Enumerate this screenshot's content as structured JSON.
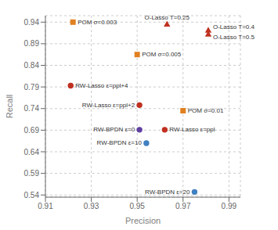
{
  "chart_data": {
    "type": "scatter",
    "xlabel": "Precision",
    "ylabel": "Recall",
    "xlim": [
      0.91,
      0.995
    ],
    "ylim": [
      0.535,
      0.955
    ],
    "xticks": [
      0.91,
      0.93,
      0.95,
      0.97,
      0.99
    ],
    "yticks": [
      0.54,
      0.59,
      0.64,
      0.69,
      0.74,
      0.79,
      0.84,
      0.89,
      0.94
    ],
    "grid": true,
    "series": [
      {
        "color": "#E08020",
        "marker": "square",
        "x": [
          0.922,
          0.95,
          0.97
        ],
        "values": [
          0.94,
          0.865,
          0.735
        ],
        "annotations": [
          "POM σ=0.003",
          "POM σ=0.005",
          "POM σ=0.01"
        ]
      },
      {
        "color": "#C03020",
        "marker": "triangle",
        "x": [
          0.963,
          0.981,
          0.981
        ],
        "values": [
          0.935,
          0.921,
          0.912
        ],
        "annotations": [
          "O-Lasso T=0.25",
          "O-Lasso T=0.4",
          "O-Lasso T=0.5"
        ]
      },
      {
        "color": "#C03020",
        "marker": "circle",
        "x": [
          0.921,
          0.951,
          0.962
        ],
        "values": [
          0.793,
          0.748,
          0.691
        ],
        "annotations": [
          "RW-Lasso ε=ppl+4",
          "RW-Lasso ε=ppl+2",
          "RW-Lasso ε=ppl"
        ]
      },
      {
        "color": "#6040A0",
        "marker": "circle",
        "x": [
          0.951
        ],
        "values": [
          0.691
        ],
        "annotations": [
          "RW-BPDN ε=0"
        ]
      },
      {
        "color": "#4080C0",
        "marker": "circle",
        "x": [
          0.954,
          0.975
        ],
        "values": [
          0.66,
          0.547
        ],
        "annotations": [
          "RW-BPDN ε=10",
          "RW-BPDN ε=20"
        ]
      }
    ]
  }
}
